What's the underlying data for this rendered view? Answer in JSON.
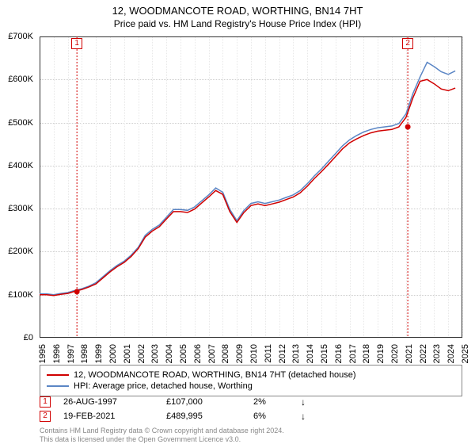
{
  "title": {
    "line1": "12, WOODMANCOTE ROAD, WORTHING, BN14 7HT",
    "line2": "Price paid vs. HM Land Registry's House Price Index (HPI)"
  },
  "chart": {
    "type": "line",
    "background_color": "#ffffff",
    "grid_color": "#cccccc",
    "border_color": "#333333",
    "ylim": [
      0,
      700000
    ],
    "ytick_step": 100000,
    "ytick_labels": [
      "£0",
      "£100K",
      "£200K",
      "£300K",
      "£400K",
      "£500K",
      "£600K",
      "£700K"
    ],
    "xlim": [
      1995,
      2025
    ],
    "xticks": [
      1995,
      1996,
      1997,
      1998,
      1999,
      2000,
      2001,
      2002,
      2003,
      2004,
      2005,
      2006,
      2007,
      2008,
      2009,
      2010,
      2011,
      2012,
      2013,
      2014,
      2015,
      2016,
      2017,
      2018,
      2019,
      2020,
      2021,
      2022,
      2023,
      2024,
      2025
    ],
    "series": [
      {
        "name": "hpi",
        "label": "HPI: Average price, detached house, Worthing",
        "color": "#5b86c5",
        "line_width": 1.5,
        "points": [
          [
            1995,
            102000
          ],
          [
            1995.5,
            102000
          ],
          [
            1996,
            100000
          ],
          [
            1996.5,
            103000
          ],
          [
            1997,
            105000
          ],
          [
            1997.5,
            110000
          ],
          [
            1998,
            114000
          ],
          [
            1998.5,
            120000
          ],
          [
            1999,
            128000
          ],
          [
            1999.5,
            142000
          ],
          [
            2000,
            156000
          ],
          [
            2000.5,
            168000
          ],
          [
            2001,
            178000
          ],
          [
            2001.5,
            192000
          ],
          [
            2002,
            210000
          ],
          [
            2002.5,
            238000
          ],
          [
            2003,
            252000
          ],
          [
            2003.5,
            262000
          ],
          [
            2004,
            280000
          ],
          [
            2004.5,
            298000
          ],
          [
            2005,
            298000
          ],
          [
            2005.5,
            296000
          ],
          [
            2006,
            304000
          ],
          [
            2006.5,
            318000
          ],
          [
            2007,
            332000
          ],
          [
            2007.5,
            348000
          ],
          [
            2008,
            338000
          ],
          [
            2008.5,
            298000
          ],
          [
            2009,
            272000
          ],
          [
            2009.5,
            296000
          ],
          [
            2010,
            312000
          ],
          [
            2010.5,
            316000
          ],
          [
            2011,
            312000
          ],
          [
            2011.5,
            316000
          ],
          [
            2012,
            320000
          ],
          [
            2012.5,
            326000
          ],
          [
            2013,
            332000
          ],
          [
            2013.5,
            342000
          ],
          [
            2014,
            358000
          ],
          [
            2014.5,
            376000
          ],
          [
            2015,
            392000
          ],
          [
            2015.5,
            410000
          ],
          [
            2016,
            428000
          ],
          [
            2016.5,
            446000
          ],
          [
            2017,
            460000
          ],
          [
            2017.5,
            470000
          ],
          [
            2018,
            478000
          ],
          [
            2018.5,
            484000
          ],
          [
            2019,
            488000
          ],
          [
            2019.5,
            490000
          ],
          [
            2020,
            492000
          ],
          [
            2020.5,
            498000
          ],
          [
            2021,
            520000
          ],
          [
            2021.5,
            568000
          ],
          [
            2022,
            606000
          ],
          [
            2022.5,
            640000
          ],
          [
            2023,
            630000
          ],
          [
            2023.5,
            618000
          ],
          [
            2024,
            612000
          ],
          [
            2024.5,
            620000
          ]
        ]
      },
      {
        "name": "subject",
        "label": "12, WOODMANCOTE ROAD, WORTHING, BN14 7HT (detached house)",
        "color": "#d00000",
        "line_width": 1.5,
        "points": [
          [
            1995,
            100000
          ],
          [
            1995.5,
            100000
          ],
          [
            1996,
            98000
          ],
          [
            1996.5,
            101000
          ],
          [
            1997,
            103000
          ],
          [
            1997.5,
            108000
          ],
          [
            1998,
            112000
          ],
          [
            1998.5,
            118000
          ],
          [
            1999,
            125000
          ],
          [
            1999.5,
            139000
          ],
          [
            2000,
            153000
          ],
          [
            2000.5,
            165000
          ],
          [
            2001,
            175000
          ],
          [
            2001.5,
            189000
          ],
          [
            2002,
            207000
          ],
          [
            2002.5,
            234000
          ],
          [
            2003,
            248000
          ],
          [
            2003.5,
            258000
          ],
          [
            2004,
            276000
          ],
          [
            2004.5,
            293000
          ],
          [
            2005,
            293000
          ],
          [
            2005.5,
            291000
          ],
          [
            2006,
            299000
          ],
          [
            2006.5,
            313000
          ],
          [
            2007,
            327000
          ],
          [
            2007.5,
            342000
          ],
          [
            2008,
            333000
          ],
          [
            2008.5,
            293000
          ],
          [
            2009,
            268000
          ],
          [
            2009.5,
            291000
          ],
          [
            2010,
            307000
          ],
          [
            2010.5,
            311000
          ],
          [
            2011,
            307000
          ],
          [
            2011.5,
            311000
          ],
          [
            2012,
            315000
          ],
          [
            2012.5,
            321000
          ],
          [
            2013,
            327000
          ],
          [
            2013.5,
            337000
          ],
          [
            2014,
            352000
          ],
          [
            2014.5,
            370000
          ],
          [
            2015,
            386000
          ],
          [
            2015.5,
            403000
          ],
          [
            2016,
            421000
          ],
          [
            2016.5,
            439000
          ],
          [
            2017,
            453000
          ],
          [
            2017.5,
            462000
          ],
          [
            2018,
            470000
          ],
          [
            2018.5,
            476000
          ],
          [
            2019,
            480000
          ],
          [
            2019.5,
            482000
          ],
          [
            2020,
            484000
          ],
          [
            2020.5,
            490000
          ],
          [
            2021,
            512000
          ],
          [
            2021.5,
            558000
          ],
          [
            2022,
            596000
          ],
          [
            2022.5,
            600000
          ],
          [
            2023,
            590000
          ],
          [
            2023.5,
            578000
          ],
          [
            2024,
            574000
          ],
          [
            2024.5,
            580000
          ]
        ]
      }
    ],
    "markers": [
      {
        "id": "1",
        "x": 1997.65,
        "y": 107000,
        "line_color": "#d00000",
        "line_dash": "2,2"
      },
      {
        "id": "2",
        "x": 2021.13,
        "y": 489995,
        "line_color": "#d00000",
        "line_dash": "2,2"
      }
    ]
  },
  "legend": {
    "border_color": "#888888",
    "items": [
      {
        "color": "#d00000",
        "label": "12, WOODMANCOTE ROAD, WORTHING, BN14 7HT (detached house)"
      },
      {
        "color": "#5b86c5",
        "label": "HPI: Average price, detached house, Worthing"
      }
    ]
  },
  "transactions": [
    {
      "id": "1",
      "date": "26-AUG-1997",
      "price": "£107,000",
      "pct": "2%",
      "arrow": "↓"
    },
    {
      "id": "2",
      "date": "19-FEB-2021",
      "price": "£489,995",
      "pct": "6%",
      "arrow": "↓"
    }
  ],
  "footnote": {
    "line1": "Contains HM Land Registry data © Crown copyright and database right 2024.",
    "line2": "This data is licensed under the Open Government Licence v3.0."
  }
}
